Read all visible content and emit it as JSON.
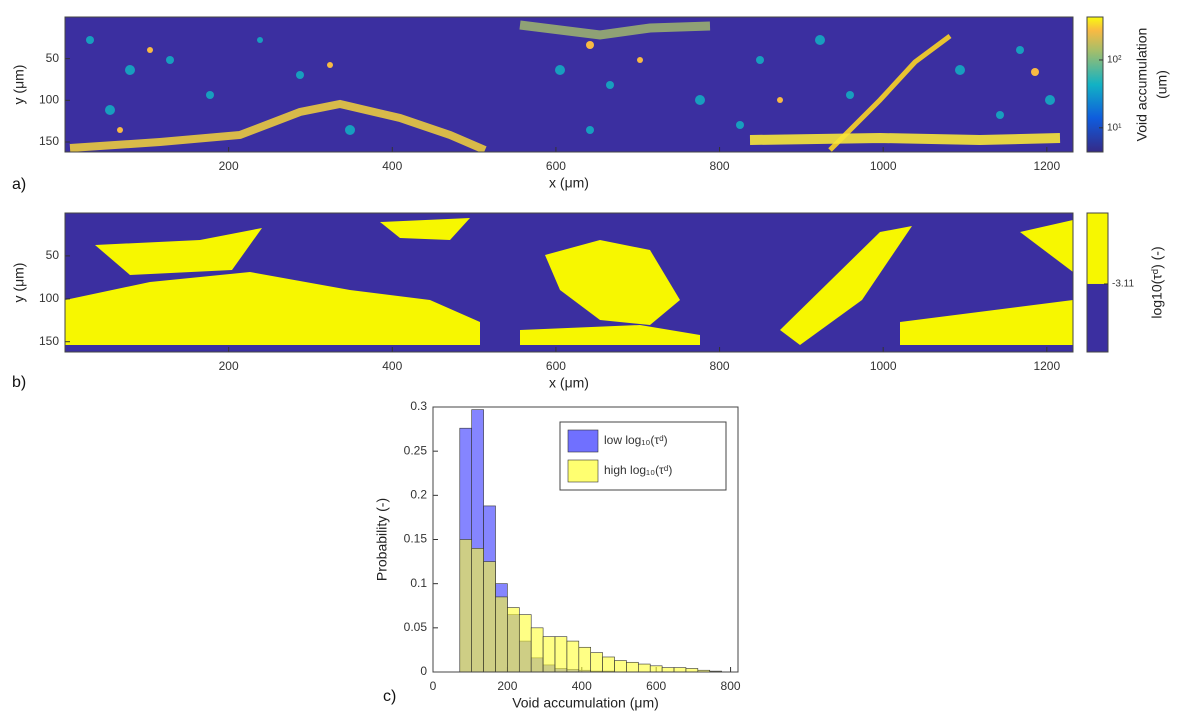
{
  "chart_data": [
    {
      "type": "heatmap",
      "panel_label": "a)",
      "xlabel": "x (μm)",
      "ylabel": "y (μm)",
      "xlim": [
        0,
        1232
      ],
      "ylim": [
        0,
        162
      ],
      "xticks": [
        200,
        400,
        600,
        800,
        1000,
        1200
      ],
      "yticks": [
        50,
        100,
        150
      ],
      "colorbar": {
        "scale": "log",
        "lim": [
          4.4,
          430
        ],
        "label": [
          "Void accumulation",
          "(um)"
        ],
        "ticks": [
          {
            "value": 10,
            "label": "10¹"
          },
          {
            "value": 100,
            "label": "10²"
          }
        ]
      }
    },
    {
      "type": "heatmap",
      "panel_label": "b)",
      "xlabel": "x (μm)",
      "ylabel": "y (μm)",
      "xlim": [
        0,
        1232
      ],
      "ylim": [
        0,
        162
      ],
      "xticks": [
        200,
        400,
        600,
        800,
        1000,
        1200
      ],
      "yticks": [
        50,
        100,
        150
      ],
      "colorbar": {
        "scale": "linear",
        "lim": [
          -4.5,
          -1.66
        ],
        "label": [
          "log10(τᵈ) (-)"
        ],
        "ticks": [
          -3.11
        ],
        "colors": [
          "#f7f700",
          "#3b2fa0"
        ]
      }
    },
    {
      "type": "histogram",
      "panel_label": "c)",
      "xlabel": "Void accumulation (μm)",
      "ylabel": "Probability (-)",
      "xlim": [
        0,
        820
      ],
      "ylim": [
        0,
        0.3
      ],
      "xticks": [
        0,
        200,
        400,
        600,
        800
      ],
      "yticks": [
        0,
        0.05,
        0.1,
        0.15,
        0.2,
        0.25,
        0.3
      ],
      "bins": [
        72,
        104,
        136,
        168,
        200,
        232,
        264,
        296,
        328,
        360,
        392,
        424,
        456,
        488,
        520,
        552,
        584,
        616,
        648,
        680,
        712,
        744,
        776
      ],
      "series": [
        {
          "name": "low log₁₀(τᵈ)",
          "color": "#3333ff",
          "values": [
            0.276,
            0.297,
            0.188,
            0.1,
            0.065,
            0.035,
            0.016,
            0.008,
            0.004,
            0.003,
            0.002,
            0.001,
            0.001,
            0,
            0,
            0,
            0,
            0,
            0,
            0,
            0,
            0
          ]
        },
        {
          "name": "high log₁₀(τᵈ)",
          "color": "#ffff33",
          "values": [
            0.15,
            0.14,
            0.125,
            0.085,
            0.073,
            0.065,
            0.05,
            0.04,
            0.04,
            0.035,
            0.028,
            0.022,
            0.017,
            0.013,
            0.011,
            0.009,
            0.007,
            0.005,
            0.005,
            0.004,
            0.002,
            0.001
          ]
        }
      ]
    }
  ]
}
